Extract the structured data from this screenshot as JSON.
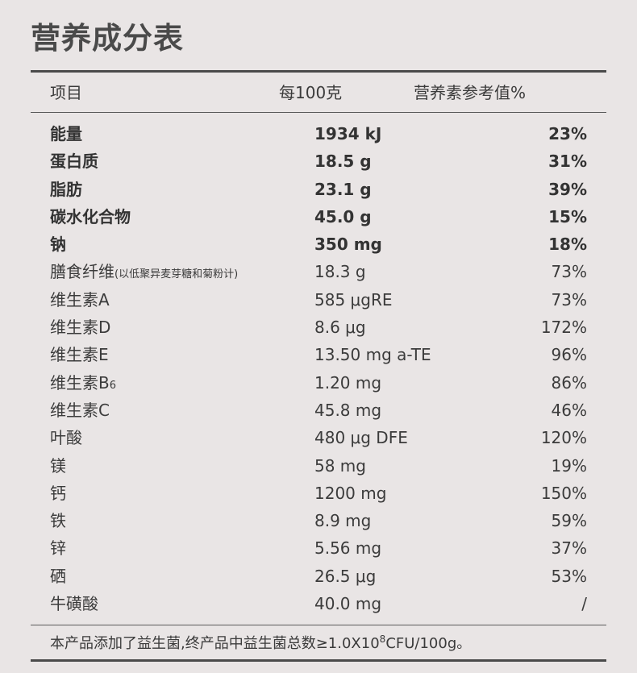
{
  "title": "营养成分表",
  "header": {
    "col_item": "项目",
    "col_per100": "每100克",
    "col_nrv": "营养素参考值%"
  },
  "rows": [
    {
      "name": "能量",
      "amount": "1934 kJ",
      "nrv": "23%",
      "bold": true
    },
    {
      "name": "蛋白质",
      "amount": "18.5 g",
      "nrv": "31%",
      "bold": true
    },
    {
      "name": "脂肪",
      "amount": "23.1 g",
      "nrv": "39%",
      "bold": true
    },
    {
      "name": "碳水化合物",
      "amount": "45.0 g",
      "nrv": "15%",
      "bold": true
    },
    {
      "name": "钠",
      "amount": "350 mg",
      "nrv": "18%",
      "bold": true
    },
    {
      "name": "膳食纤维",
      "note": "(以低聚异麦芽糖和菊粉计)",
      "amount": "18.3 g",
      "nrv": "73%"
    },
    {
      "name": "维生素A",
      "amount": "585 μgRE",
      "nrv": "73%"
    },
    {
      "name": "维生素D",
      "amount": "8.6 μg",
      "nrv": "172%"
    },
    {
      "name": "维生素E",
      "amount": "13.50 mg a-TE",
      "nrv": "96%"
    },
    {
      "name": "维生素B",
      "sub": "6",
      "amount": "1.20 mg",
      "nrv": "86%"
    },
    {
      "name": "维生素C",
      "amount": "45.8 mg",
      "nrv": "46%"
    },
    {
      "name": "叶酸",
      "amount": "480 μg DFE",
      "nrv": "120%"
    },
    {
      "name": "镁",
      "amount": "58 mg",
      "nrv": "19%"
    },
    {
      "name": "钙",
      "amount": "1200 mg",
      "nrv": "150%"
    },
    {
      "name": "铁",
      "amount": "8.9 mg",
      "nrv": "59%"
    },
    {
      "name": "锌",
      "amount": "5.56 mg",
      "nrv": "37%"
    },
    {
      "name": "硒",
      "amount": "26.5 μg",
      "nrv": "53%"
    },
    {
      "name": "牛磺酸",
      "amount": "40.0 mg",
      "nrv": "/"
    }
  ],
  "footnote": {
    "text_before": "本产品添加了益生菌,终产品中益生菌总数≥1.0X10",
    "exponent": "8",
    "text_after": "CFU/100g。"
  }
}
